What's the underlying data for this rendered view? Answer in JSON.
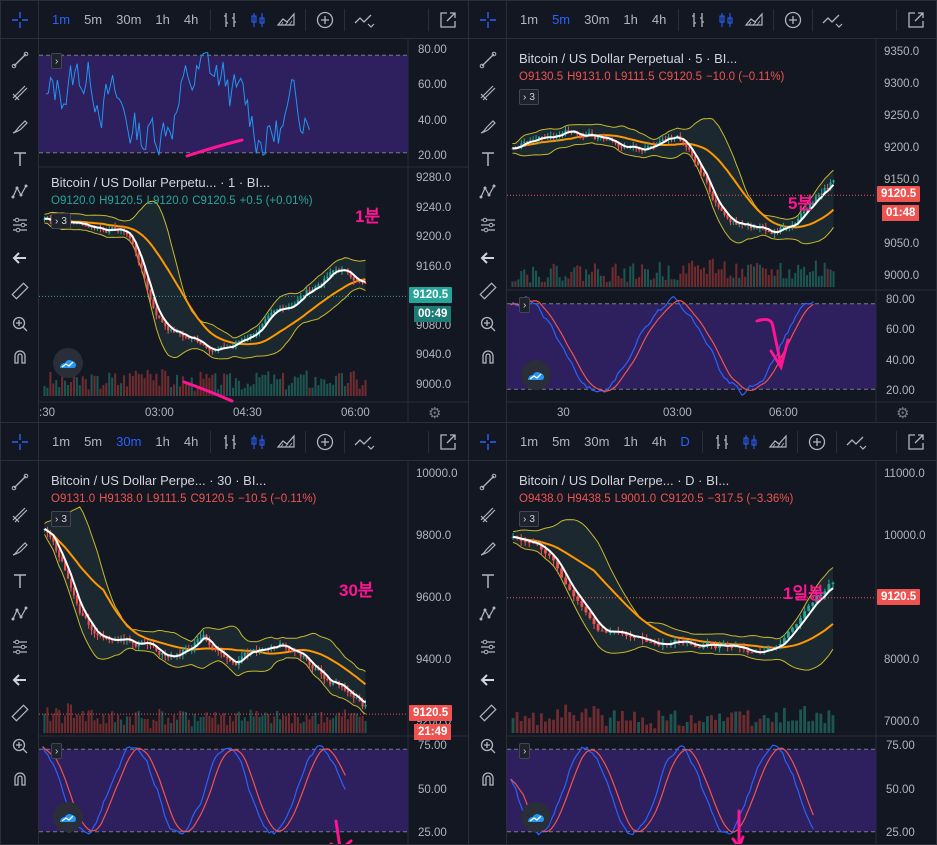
{
  "toolbar": {
    "intervals": [
      "1m",
      "5m",
      "30m",
      "1h",
      "4h"
    ],
    "daily": "D"
  },
  "colors": {
    "bg": "#131722",
    "up": "#26a69a",
    "down": "#ef5350",
    "bb": "#c8b82b",
    "ma": "#ff9800",
    "k_line": "#2962ff",
    "d_line": "#ef5350",
    "rsi_line": "#2196f3",
    "band": "#2e1f5e",
    "annotation": "#ff1493"
  },
  "panes": [
    {
      "id": "p1m",
      "active_interval": 0,
      "title": "Bitcoin / US Dollar Perpetu...  ·  1  ·  BI...",
      "ohlc": {
        "o": "O9120.0",
        "h": "H9120.5",
        "l": "L9120.0",
        "c": "C9120.5",
        "chg": "+0.5 (+0.01%)",
        "dir": "up"
      },
      "chip": "3",
      "annotation": "1분",
      "price_label": "9120.5",
      "price_label_color": "#26a69a",
      "timer": "00:49",
      "timer_color": "#1c7c74",
      "main_axis": [
        "9280.0",
        "9240.0",
        "9200.0",
        "9160.0",
        "9120.0",
        "9080.0",
        "9040.0",
        "9000.0"
      ],
      "ind_axis": [
        "80.00",
        "60.00",
        "40.00",
        "20.00"
      ],
      "time_axis": [
        ":30",
        "03:00",
        "04:30",
        "06:00"
      ]
    },
    {
      "id": "p5m",
      "active_interval": 1,
      "title": "Bitcoin / US Dollar Perpetual  ·  5  ·  BI...",
      "ohlc": {
        "o": "O9130.5",
        "h": "H9131.0",
        "l": "L9111.5",
        "c": "C9120.5",
        "chg": "−10.0 (−0.11%)",
        "dir": "down"
      },
      "chip": "3",
      "annotation": "5분",
      "price_label": "9120.5",
      "price_label_color": "#ef5350",
      "timer": "01:48",
      "timer_color": "#ef5350",
      "main_axis": [
        "9350.0",
        "9300.0",
        "9250.0",
        "9200.0",
        "9150.0",
        "9100.0",
        "9050.0",
        "9000.0"
      ],
      "ind_axis": [
        "80.00",
        "60.00",
        "40.00",
        "20.00"
      ],
      "time_axis": [
        "30",
        "03:00",
        "06:00"
      ]
    },
    {
      "id": "p30m",
      "active_interval": 2,
      "title": "Bitcoin / US Dollar Perpe...  ·  30  ·  BI...",
      "ohlc": {
        "o": "O9131.0",
        "h": "H9138.0",
        "l": "L9111.5",
        "c": "C9120.5",
        "chg": "−10.5 (−0.11%)",
        "dir": "down"
      },
      "chip": "3",
      "annotation": "30분",
      "price_label": "9120.5",
      "price_label_color": "#ef5350",
      "timer": "21:49",
      "timer_color": "#ef5350",
      "main_axis": [
        "10000.0",
        "9800.0",
        "9600.0",
        "9400.0",
        "9200.0"
      ],
      "ind_axis": [
        "75.00",
        "50.00",
        "25.00"
      ],
      "time_axis": []
    },
    {
      "id": "pD",
      "active_interval": 5,
      "title": "Bitcoin / US Dollar Perpe...  ·  D  ·  BI...",
      "ohlc": {
        "o": "O9438.0",
        "h": "H9438.5",
        "l": "L9001.0",
        "c": "C9120.5",
        "chg": "−317.5 (−3.36%)",
        "dir": "down"
      },
      "chip": "3",
      "annotation": "1일봉",
      "price_label": "9120.5",
      "price_label_color": "#ef5350",
      "timer": "",
      "timer_color": "#ef5350",
      "main_axis": [
        "11000.0",
        "10000.0",
        "9000.0",
        "8000.0",
        "7000.0"
      ],
      "ind_axis": [
        "75.00",
        "50.00",
        "25.00"
      ],
      "time_axis": []
    }
  ]
}
